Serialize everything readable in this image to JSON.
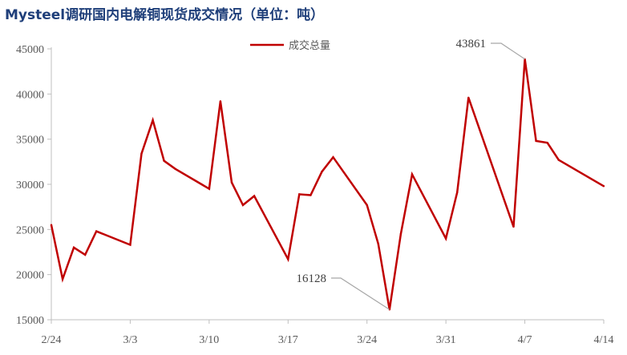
{
  "title": "Mysteel调研国内电解铜现货成交情况（单位：吨）",
  "chart_data": {
    "type": "line",
    "title": "Mysteel调研国内电解铜现货成交情况（单位：吨）",
    "x_tick_labels": [
      "2/24",
      "3/3",
      "3/10",
      "3/17",
      "3/24",
      "3/31",
      "4/7",
      "4/14"
    ],
    "y_tick_labels": [
      "15000",
      "20000",
      "25000",
      "30000",
      "35000",
      "40000",
      "45000"
    ],
    "ylim": [
      15000,
      45000
    ],
    "xlim_days": [
      0,
      49
    ],
    "legend": {
      "position": "top-center",
      "label": "成交总量"
    },
    "grid": false,
    "series": [
      {
        "name": "成交总量",
        "color": "#c00000",
        "points": [
          {
            "x": "2/24",
            "y": 25500
          },
          {
            "x": "2/25",
            "y": 19500
          },
          {
            "x": "2/26",
            "y": 23000
          },
          {
            "x": "2/27",
            "y": 22200
          },
          {
            "x": "2/28",
            "y": 24800
          },
          {
            "x": "3/3",
            "y": 23300
          },
          {
            "x": "3/4",
            "y": 33400
          },
          {
            "x": "3/5",
            "y": 37100
          },
          {
            "x": "3/6",
            "y": 32600
          },
          {
            "x": "3/7",
            "y": 31700
          },
          {
            "x": "3/10",
            "y": 29500
          },
          {
            "x": "3/11",
            "y": 39200
          },
          {
            "x": "3/12",
            "y": 30200
          },
          {
            "x": "3/13",
            "y": 27700
          },
          {
            "x": "3/14",
            "y": 28700
          },
          {
            "x": "3/17",
            "y": 21700
          },
          {
            "x": "3/18",
            "y": 28900
          },
          {
            "x": "3/19",
            "y": 28800
          },
          {
            "x": "3/20",
            "y": 31400
          },
          {
            "x": "3/21",
            "y": 33000
          },
          {
            "x": "3/24",
            "y": 27700
          },
          {
            "x": "3/25",
            "y": 23400
          },
          {
            "x": "3/26",
            "y": 16128
          },
          {
            "x": "3/27",
            "y": 24500
          },
          {
            "x": "3/28",
            "y": 31100
          },
          {
            "x": "3/31",
            "y": 24000
          },
          {
            "x": "4/1",
            "y": 29100
          },
          {
            "x": "4/2",
            "y": 39600
          },
          {
            "x": "4/6",
            "y": 25300
          },
          {
            "x": "4/7",
            "y": 43861
          },
          {
            "x": "4/8",
            "y": 34800
          },
          {
            "x": "4/9",
            "y": 34600
          },
          {
            "x": "4/10",
            "y": 32700
          },
          {
            "x": "4/14",
            "y": 29800
          }
        ]
      }
    ],
    "annotations": [
      {
        "label": "43861",
        "x": "4/7",
        "y": 43861
      },
      {
        "label": "16128",
        "x": "3/26",
        "y": 16128
      }
    ]
  }
}
